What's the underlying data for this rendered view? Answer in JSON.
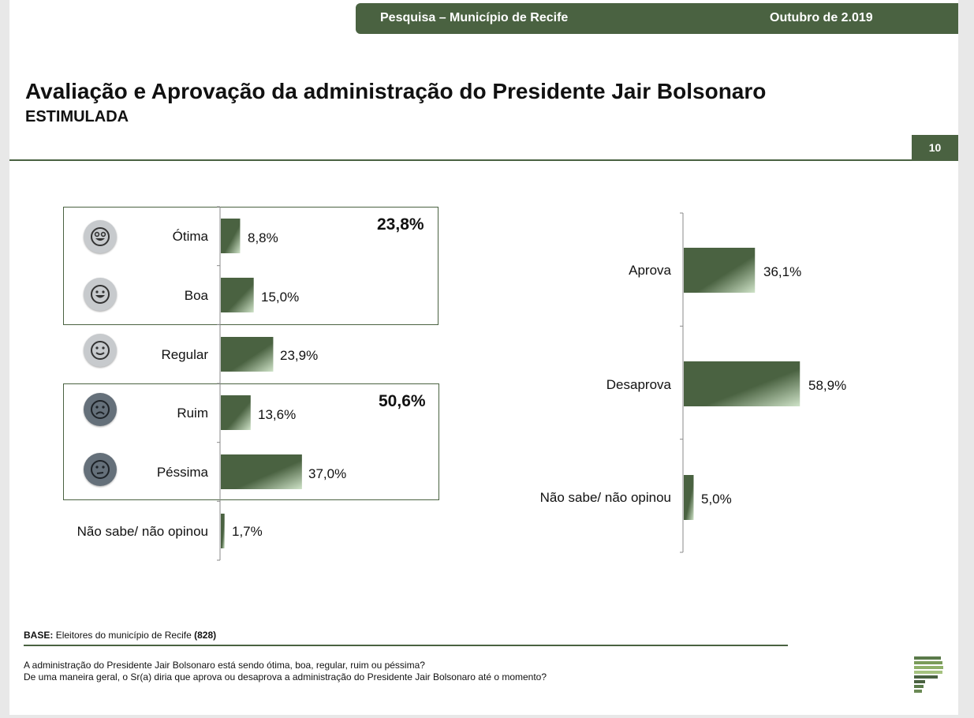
{
  "header": {
    "survey": "Pesquisa – Município de Recife",
    "date": "Outubro de 2.019"
  },
  "title": "Avaliação e Aprovação da administração do Presidente Jair Bolsonaro",
  "subtitle": "ESTIMULADA",
  "page_number": "10",
  "colors": {
    "accent": "#4a6241",
    "bar_light": "#cfe3c8"
  },
  "icons": [
    "very-happy-face-icon",
    "happy-face-icon",
    "neutral-face-icon",
    "sad-face-icon",
    "very-sad-face-icon"
  ],
  "groups": {
    "positive_total": "23,8%",
    "negative_total": "50,6%"
  },
  "chart_data": [
    {
      "type": "bar",
      "orientation": "horizontal",
      "categories": [
        "Ótima",
        "Boa",
        "Regular",
        "Ruim",
        "Péssima",
        "Não sabe/ não opinou"
      ],
      "values": [
        8.8,
        15.0,
        23.9,
        13.6,
        37.0,
        1.7
      ],
      "value_labels": [
        "8,8%",
        "15,0%",
        "23,9%",
        "13,6%",
        "37,0%",
        "1,7%"
      ]
    },
    {
      "type": "bar",
      "orientation": "horizontal",
      "categories": [
        "Aprova",
        "Desaprova",
        "Não sabe/ não opinou"
      ],
      "values": [
        36.1,
        58.9,
        5.0
      ],
      "value_labels": [
        "36,1%",
        "58,9%",
        "5,0%"
      ]
    }
  ],
  "footer": {
    "base_label": "BASE:",
    "base_text": "Eleitores do município de Recife",
    "base_count": "(828)",
    "question1": "A administração do Presidente Jair Bolsonaro está sendo ótima, boa, regular, ruim ou péssima?",
    "question2": "De uma maneira geral, o Sr(a) diria que aprova ou desaprova a administração do Presidente Jair Bolsonaro até o momento?"
  }
}
